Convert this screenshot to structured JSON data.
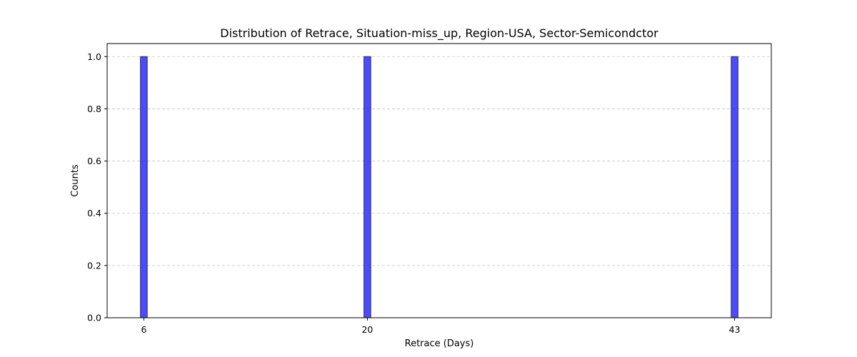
{
  "chart_data": {
    "type": "bar",
    "title": "Distribution of Retrace, Situation-miss_up, Region-USA, Sector-Semicondctor",
    "xlabel": "Retrace (Days)",
    "ylabel": "Counts",
    "x": [
      6,
      20,
      43
    ],
    "values": [
      1,
      1,
      1
    ],
    "xticks": [
      6,
      20,
      43
    ],
    "yticks": [
      0.0,
      0.2,
      0.4,
      0.6,
      0.8,
      1.0
    ],
    "ytick_labels": [
      "0.0",
      "0.2",
      "0.4",
      "0.6",
      "0.8",
      "1.0"
    ],
    "xlim": [
      3.7,
      45.3
    ],
    "ylim": [
      0,
      1.05
    ],
    "grid": "y-dashed",
    "bar_color": "#0000ff",
    "bar_edge_color": "#000000"
  }
}
